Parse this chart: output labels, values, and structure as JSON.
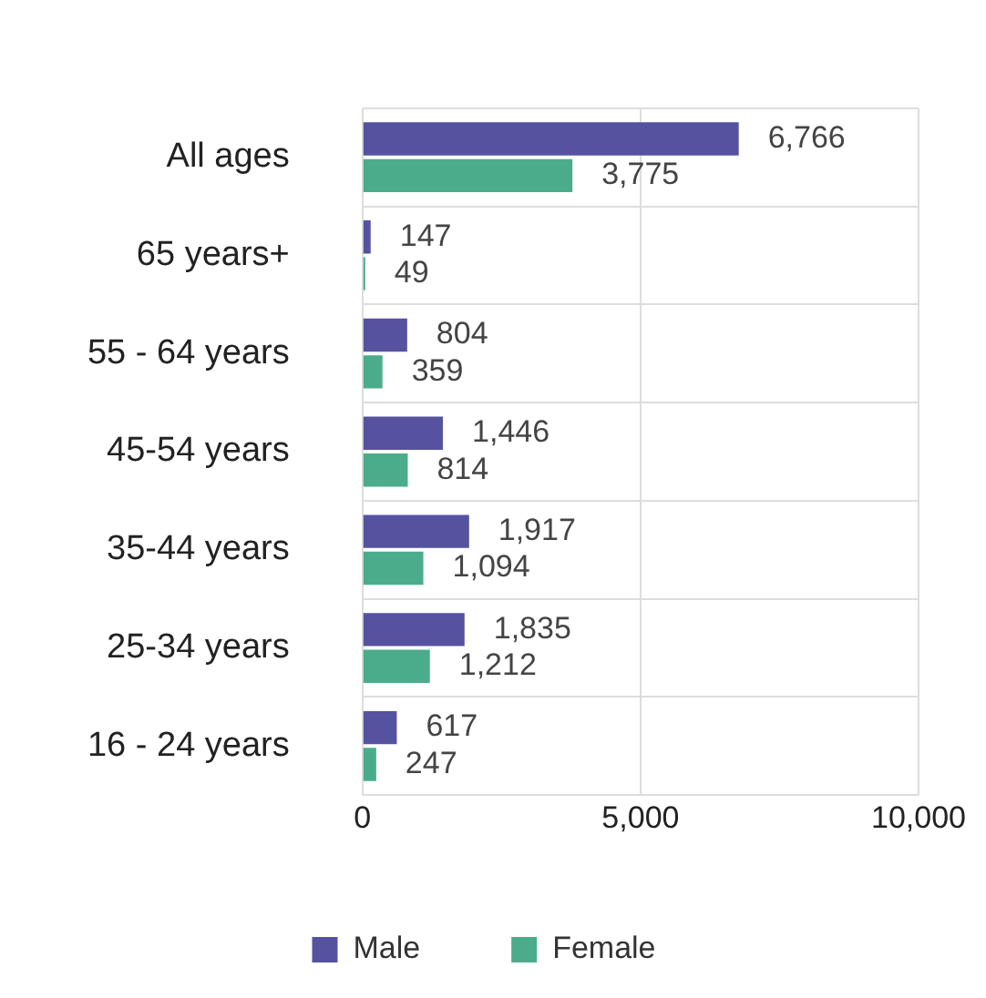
{
  "chart_data": {
    "type": "bar",
    "orientation": "horizontal",
    "categories": [
      "All ages",
      "65 years+",
      "55 - 64 years",
      "45-54 years",
      "35-44 years",
      "25-34 years",
      "16 - 24 years"
    ],
    "series": [
      {
        "name": "Male",
        "color": "#55539f",
        "values": [
          6766,
          147,
          804,
          1446,
          1917,
          1835,
          617
        ],
        "value_labels": [
          "6,766",
          "147",
          "804",
          "1,446",
          "1,917",
          "1,835",
          "617"
        ]
      },
      {
        "name": "Female",
        "color": "#4aac8b",
        "values": [
          3775,
          49,
          359,
          814,
          1094,
          1212,
          247
        ],
        "value_labels": [
          "3,775",
          "49",
          "359",
          "814",
          "1,094",
          "1,212",
          "247"
        ]
      }
    ],
    "xlim": [
      0,
      10000
    ],
    "xticks": [
      0,
      {
        "value": 5000,
        "label": "5,000"
      },
      {
        "value": 10000,
        "label": "10,000"
      }
    ],
    "grid": true,
    "legend": "bottom"
  }
}
